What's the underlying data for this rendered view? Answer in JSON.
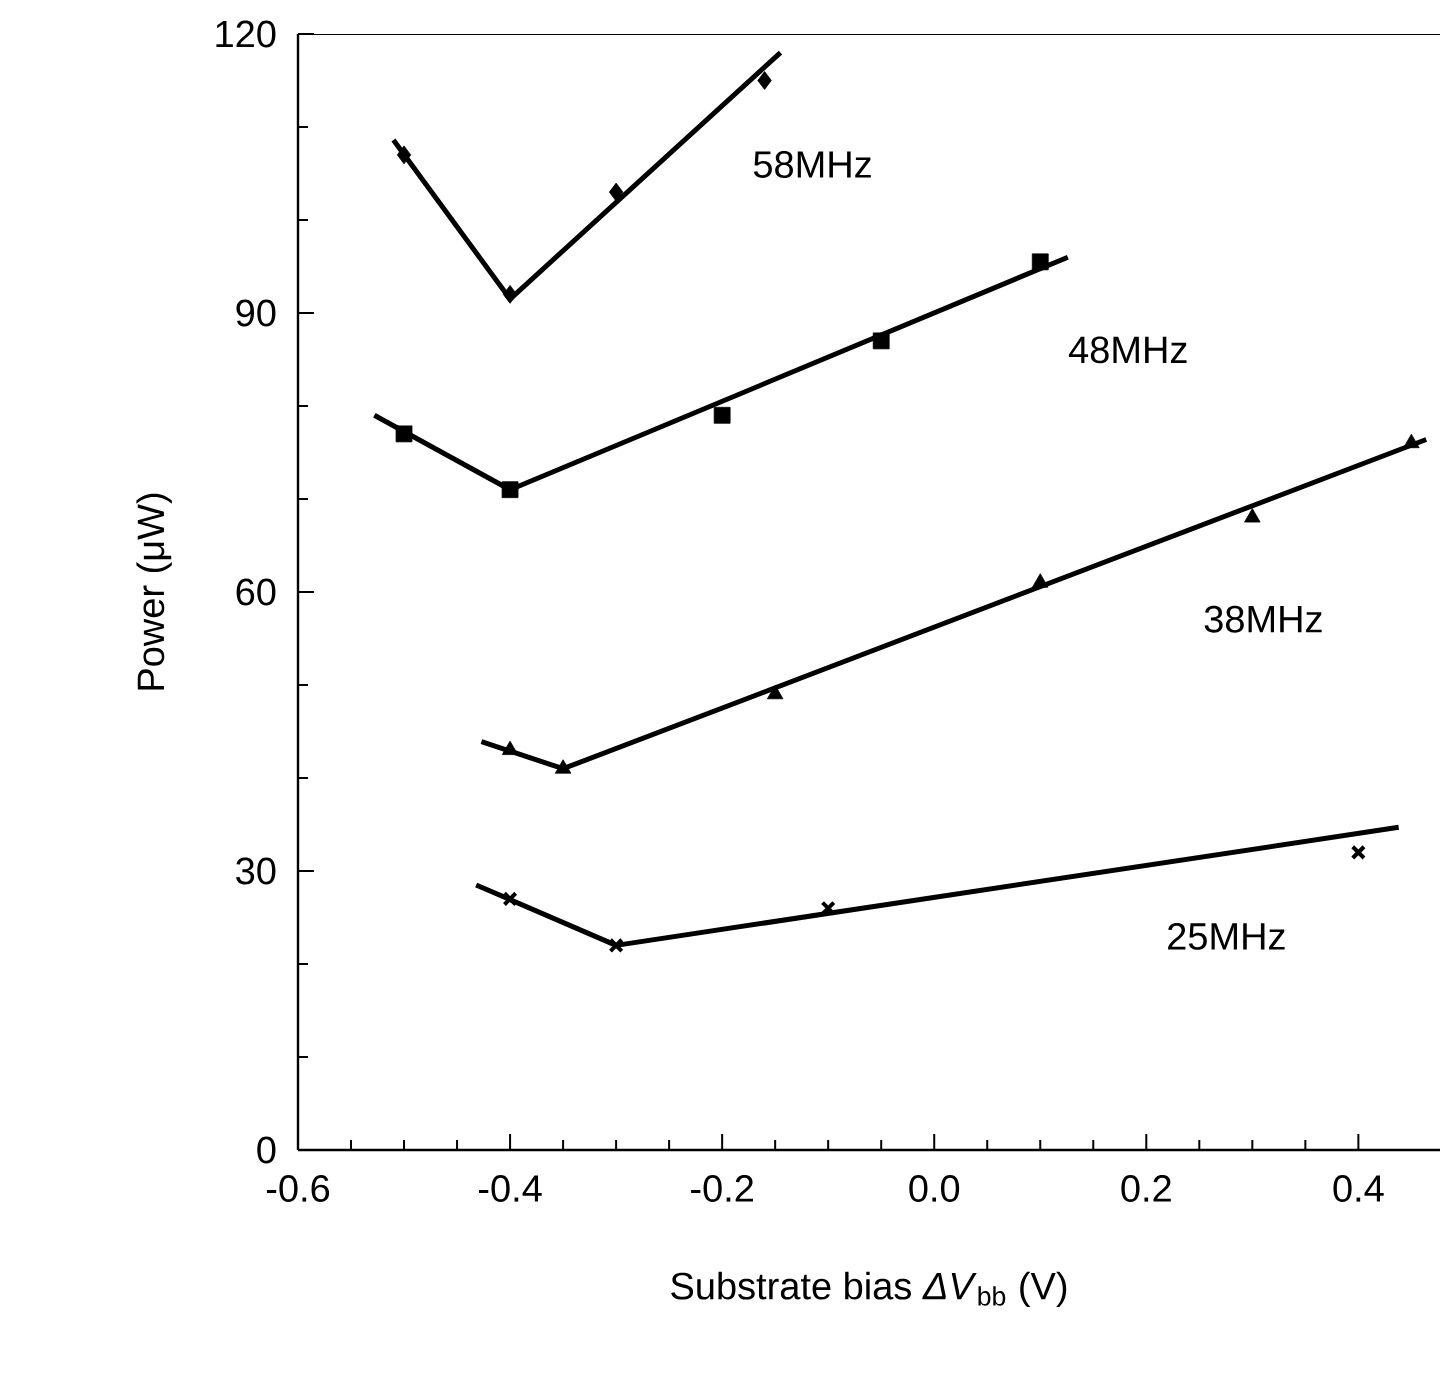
{
  "chart_data": {
    "type": "scatter",
    "xlabel": "Substrate bias *ΔV*$_{bb}$ (V)",
    "ylabel": "Power (μW)",
    "xlim": [
      -0.6,
      0.477
    ],
    "ylim": [
      0,
      120
    ],
    "xticks": [
      {
        "value": -0.6,
        "label": "-0.6"
      },
      {
        "value": -0.4,
        "label": "-0.4"
      },
      {
        "value": -0.2,
        "label": "-0.2"
      },
      {
        "value": 0,
        "label": "0.0"
      },
      {
        "value": 0.2,
        "label": "0.2"
      },
      {
        "value": 0.4,
        "label": "0.4"
      }
    ],
    "yticks": [
      0,
      30,
      60,
      90,
      120
    ],
    "grid": false,
    "series": [
      {
        "name": "58MHz",
        "marker": "diamond",
        "color": "#000000",
        "x": [
          -0.5,
          -0.4,
          -0.3,
          -0.16
        ],
        "values": [
          107,
          92,
          103,
          115
        ]
      },
      {
        "type": "line",
        "marker": "none",
        "color": "#000000",
        "x": [
          -0.51,
          -0.4,
          -0.145
        ],
        "values": [
          108.6,
          91.5,
          118
        ]
      },
      {
        "name": "48MHz",
        "marker": "square",
        "color": "#000000",
        "x": [
          -0.5,
          -0.4,
          -0.2,
          -0.05,
          0.1
        ],
        "values": [
          77,
          71,
          79,
          87,
          95.5
        ]
      },
      {
        "type": "line",
        "marker": "none",
        "color": "#000000",
        "x": [
          -0.528,
          -0.4,
          0.126
        ],
        "values": [
          79,
          71,
          96
        ]
      },
      {
        "name": "38MHz",
        "marker": "triangle",
        "color": "#000000",
        "x": [
          -0.4,
          -0.35,
          -0.15,
          0.1,
          0.3,
          0.45
        ],
        "values": [
          43,
          41,
          49,
          61,
          68,
          76
        ]
      },
      {
        "type": "line",
        "marker": "none",
        "color": "#000000",
        "x": [
          -0.427,
          -0.35,
          0.464
        ],
        "values": [
          43.9,
          41,
          76.4
        ]
      },
      {
        "name": "25MHz",
        "marker": "cross",
        "color": "#000000",
        "x": [
          -0.4,
          -0.3,
          -0.1,
          0.4
        ],
        "values": [
          27,
          22,
          26,
          32
        ]
      },
      {
        "type": "line",
        "marker": "none",
        "color": "#000000",
        "x": [
          -0.432,
          -0.3,
          0.438
        ],
        "values": [
          28.5,
          22,
          34.7
        ]
      }
    ]
  }
}
